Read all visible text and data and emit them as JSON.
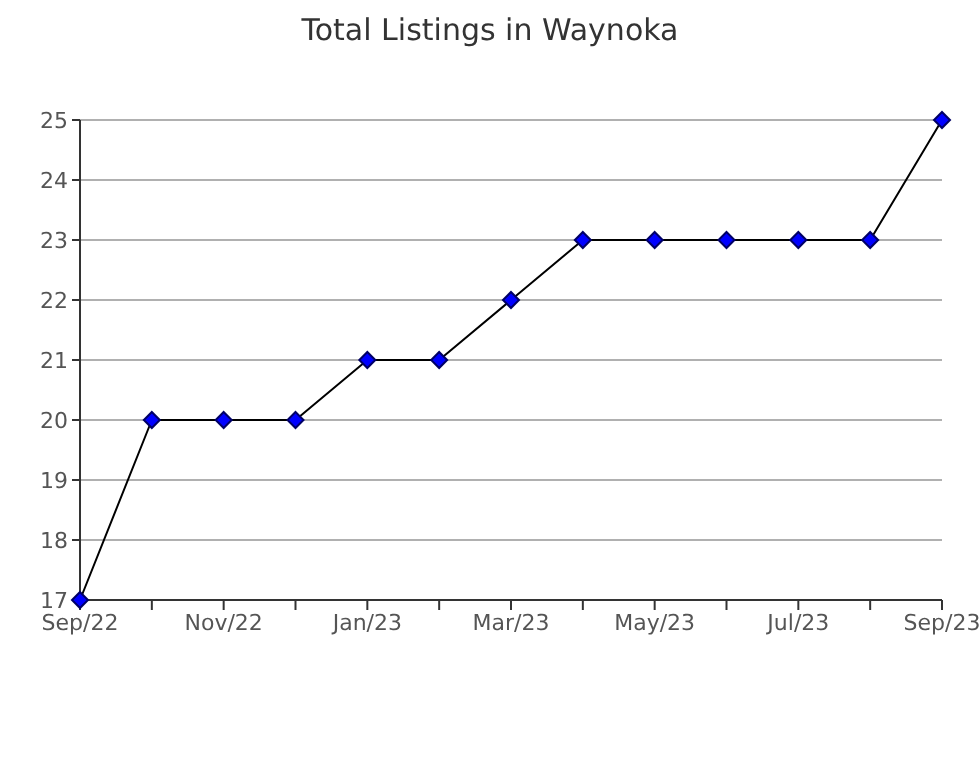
{
  "chart_data": {
    "type": "line",
    "title": "Total Listings in Waynoka",
    "x": [
      "2022-09",
      "2022-10",
      "2022-11",
      "2022-12",
      "2023-01",
      "2023-02",
      "2023-03",
      "2023-04",
      "2023-05",
      "2023-06",
      "2023-07",
      "2023-08",
      "2023-09"
    ],
    "series": [
      {
        "color": "#0000ff",
        "values": [
          17,
          20,
          20,
          20,
          21,
          21,
          22,
          23,
          23,
          23,
          23,
          23,
          25
        ]
      }
    ],
    "xlim": [
      "2022-09",
      "2023-09"
    ],
    "xticks": [
      {
        "value": "2022-09",
        "label": "Sep/22"
      },
      {
        "value": "2022-10",
        "label": null
      },
      {
        "value": "2022-11",
        "label": "Nov/22"
      },
      {
        "value": "2022-12",
        "label": null
      },
      {
        "value": "2023-01",
        "label": "Jan/23"
      },
      {
        "value": "2023-02",
        "label": null
      },
      {
        "value": "2023-03",
        "label": "Mar/23"
      },
      {
        "value": "2023-04",
        "label": null
      },
      {
        "value": "2023-05",
        "label": "May/23"
      },
      {
        "value": "2023-06",
        "label": null
      },
      {
        "value": "2023-07",
        "label": "Jul/23"
      },
      {
        "value": "2023-08",
        "label": null
      },
      {
        "value": "2023-09",
        "label": "Sep/23"
      }
    ],
    "ylim": [
      17,
      25
    ],
    "yticks": [
      17,
      18,
      19,
      20,
      21,
      22,
      23,
      24,
      25
    ],
    "grid": "y",
    "legend": false,
    "marker": "diamond",
    "line_style": "solid"
  }
}
